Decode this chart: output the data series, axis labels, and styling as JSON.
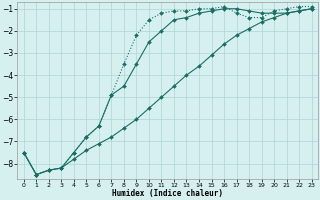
{
  "title": "",
  "xlabel": "Humidex (Indice chaleur)",
  "bg_color": "#d6f0f0",
  "grid_color": "#aed4d4",
  "line_color": "#1a6e64",
  "xlim": [
    -0.5,
    23.5
  ],
  "ylim": [
    -8.7,
    -0.7
  ],
  "yticks": [
    -8,
    -7,
    -6,
    -5,
    -4,
    -3,
    -2,
    -1
  ],
  "xticks": [
    0,
    1,
    2,
    3,
    4,
    5,
    6,
    7,
    8,
    9,
    10,
    11,
    12,
    13,
    14,
    15,
    16,
    17,
    18,
    19,
    20,
    21,
    22,
    23
  ],
  "line1_x": [
    0,
    1,
    2,
    3,
    4,
    5,
    6,
    7,
    8,
    9,
    10,
    11,
    12,
    13,
    14,
    15,
    16,
    17,
    18,
    19,
    20,
    21,
    22,
    23
  ],
  "line1_y": [
    -7.5,
    -8.5,
    -8.3,
    -8.2,
    -7.5,
    -6.8,
    -6.3,
    -4.9,
    -4.5,
    -3.5,
    -2.5,
    -2.0,
    -1.5,
    -1.4,
    -1.2,
    -1.1,
    -1.0,
    -1.0,
    -1.1,
    -1.2,
    -1.2,
    -1.2,
    -1.1,
    -1.0
  ],
  "line2_x": [
    0,
    1,
    2,
    3,
    4,
    5,
    6,
    7,
    8,
    9,
    10,
    11,
    12,
    13,
    14,
    15,
    16,
    17,
    18,
    19,
    20,
    21,
    22,
    23
  ],
  "line2_y": [
    -7.5,
    -8.5,
    -8.3,
    -8.2,
    -7.5,
    -6.8,
    -6.3,
    -4.9,
    -3.5,
    -2.2,
    -1.5,
    -1.2,
    -1.1,
    -1.1,
    -1.0,
    -1.0,
    -0.9,
    -1.2,
    -1.4,
    -1.4,
    -1.1,
    -1.0,
    -0.9,
    -0.9
  ],
  "line3_x": [
    0,
    1,
    2,
    3,
    4,
    5,
    6,
    7,
    8,
    9,
    10,
    11,
    12,
    13,
    14,
    15,
    16,
    17,
    18,
    19,
    20,
    21,
    22,
    23
  ],
  "line3_y": [
    -7.5,
    -8.5,
    -8.3,
    -8.2,
    -7.8,
    -7.4,
    -7.1,
    -6.8,
    -6.4,
    -6.0,
    -5.5,
    -5.0,
    -4.5,
    -4.0,
    -3.6,
    -3.1,
    -2.6,
    -2.2,
    -1.9,
    -1.6,
    -1.4,
    -1.2,
    -1.1,
    -1.0
  ]
}
